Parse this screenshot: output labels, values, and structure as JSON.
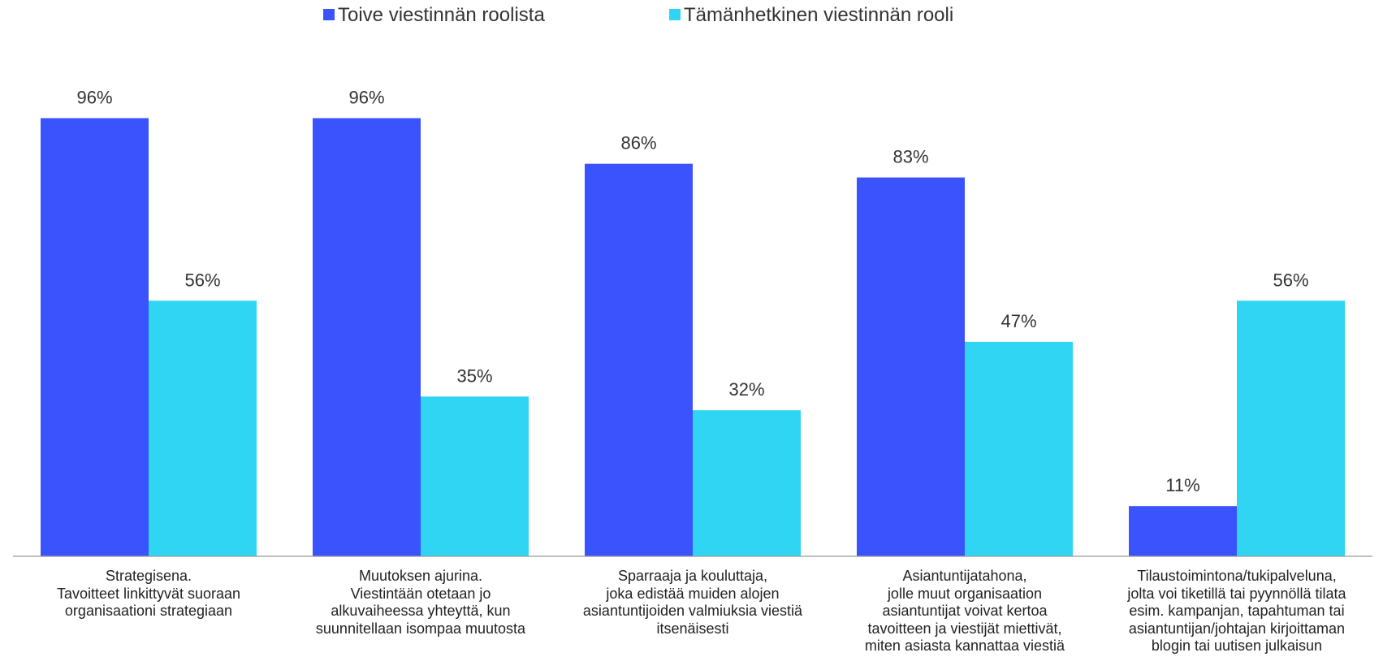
{
  "chart_data": {
    "type": "bar",
    "categories": [
      "Strategisena.\nTavoitteet linkittyvät suoraan\norganisaationi strategiaan",
      "Muutoksen ajurina.\nViestintään otetaan jo\nalkuvaiheessa yhteyttä, kun\nsuunnitellaan isompaa muutosta",
      "Sparraaja ja kouluttaja,\njoka edistää muiden alojen\nasiantuntijoiden valmiuksia viestiä\nitsenäisesti",
      "Asiantuntijatahona,\njolle muut organisaation\nasiantuntijat voivat kertoa\ntavoitteen ja viestijät miettivät,\nmiten asiasta kannattaa viestiä",
      "Tilaustoimintona/tukipalveluna,\njolta voi tiketillä tai pyynnöllä tilata\nesim. kampanjan, tapahtuman tai\nasiantuntijan/johtajan kirjoittaman\nblogin tai uutisen julkaisun"
    ],
    "series": [
      {
        "name": "Toive viestinnän roolista",
        "color": "#3a53fd",
        "values": [
          96,
          96,
          86,
          83,
          11
        ],
        "value_labels": [
          "96%",
          "96%",
          "86%",
          "83%",
          "11%"
        ]
      },
      {
        "name": "Tämänhetkinen viestinnän rooli",
        "color": "#2fd5f3",
        "values": [
          56,
          35,
          32,
          47,
          56
        ],
        "value_labels": [
          "56%",
          "35%",
          "32%",
          "47%",
          "56%"
        ]
      }
    ],
    "legend": "top"
  }
}
